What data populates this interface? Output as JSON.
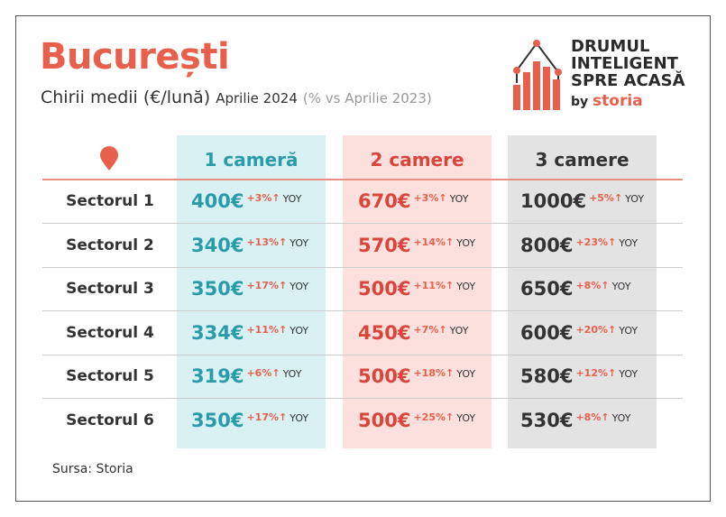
{
  "title": "București",
  "subtitle": {
    "main": "Chirii medii (€/lună)",
    "month": "Aprilie 2024",
    "compare": "(% vs Aprilie 2023)"
  },
  "logo": {
    "line1": "DRUMUL",
    "line2": "INTELIGENT",
    "line3": "SPRE ACASĂ",
    "by": "by",
    "brand": "storia"
  },
  "columns": [
    "1 cameră",
    "2 camere",
    "3 camere"
  ],
  "colors": {
    "accent": "#e8604c",
    "teal": "#2a9bab",
    "red": "#d9453a",
    "dark": "#333333"
  },
  "rows": [
    {
      "label": "Sectorul 1",
      "cells": [
        {
          "v": "400€",
          "p": "+3%↑",
          "y": "YOY"
        },
        {
          "v": "670€",
          "p": "+3%↑",
          "y": "YOY"
        },
        {
          "v": "1000€",
          "p": "+5%↑",
          "y": "YOY"
        }
      ]
    },
    {
      "label": "Sectorul 2",
      "cells": [
        {
          "v": "340€",
          "p": "+13%↑",
          "y": "YOY"
        },
        {
          "v": "570€",
          "p": "+14%↑",
          "y": "YOY"
        },
        {
          "v": "800€",
          "p": "+23%↑",
          "y": "YOY"
        }
      ]
    },
    {
      "label": "Sectorul 3",
      "cells": [
        {
          "v": "350€",
          "p": "+17%↑",
          "y": "YOY"
        },
        {
          "v": "500€",
          "p": "+11%↑",
          "y": "YOY"
        },
        {
          "v": "650€",
          "p": "+8%↑",
          "y": "YOY"
        }
      ]
    },
    {
      "label": "Sectorul 4",
      "cells": [
        {
          "v": "334€",
          "p": "+11%↑",
          "y": "YOY"
        },
        {
          "v": "450€",
          "p": "+7%↑",
          "y": "YOY"
        },
        {
          "v": "600€",
          "p": "+20%↑",
          "y": "YOY"
        }
      ]
    },
    {
      "label": "Sectorul 5",
      "cells": [
        {
          "v": "319€",
          "p": "+6%↑",
          "y": "YOY"
        },
        {
          "v": "500€",
          "p": "+18%↑",
          "y": "YOY"
        },
        {
          "v": "580€",
          "p": "+12%↑",
          "y": "YOY"
        }
      ]
    },
    {
      "label": "Sectorul 6",
      "cells": [
        {
          "v": "350€",
          "p": "+17%↑",
          "y": "YOY"
        },
        {
          "v": "500€",
          "p": "+25%↑",
          "y": "YOY"
        },
        {
          "v": "530€",
          "p": "+8%↑",
          "y": "YOY"
        }
      ]
    }
  ],
  "source": "Sursa: Storia"
}
